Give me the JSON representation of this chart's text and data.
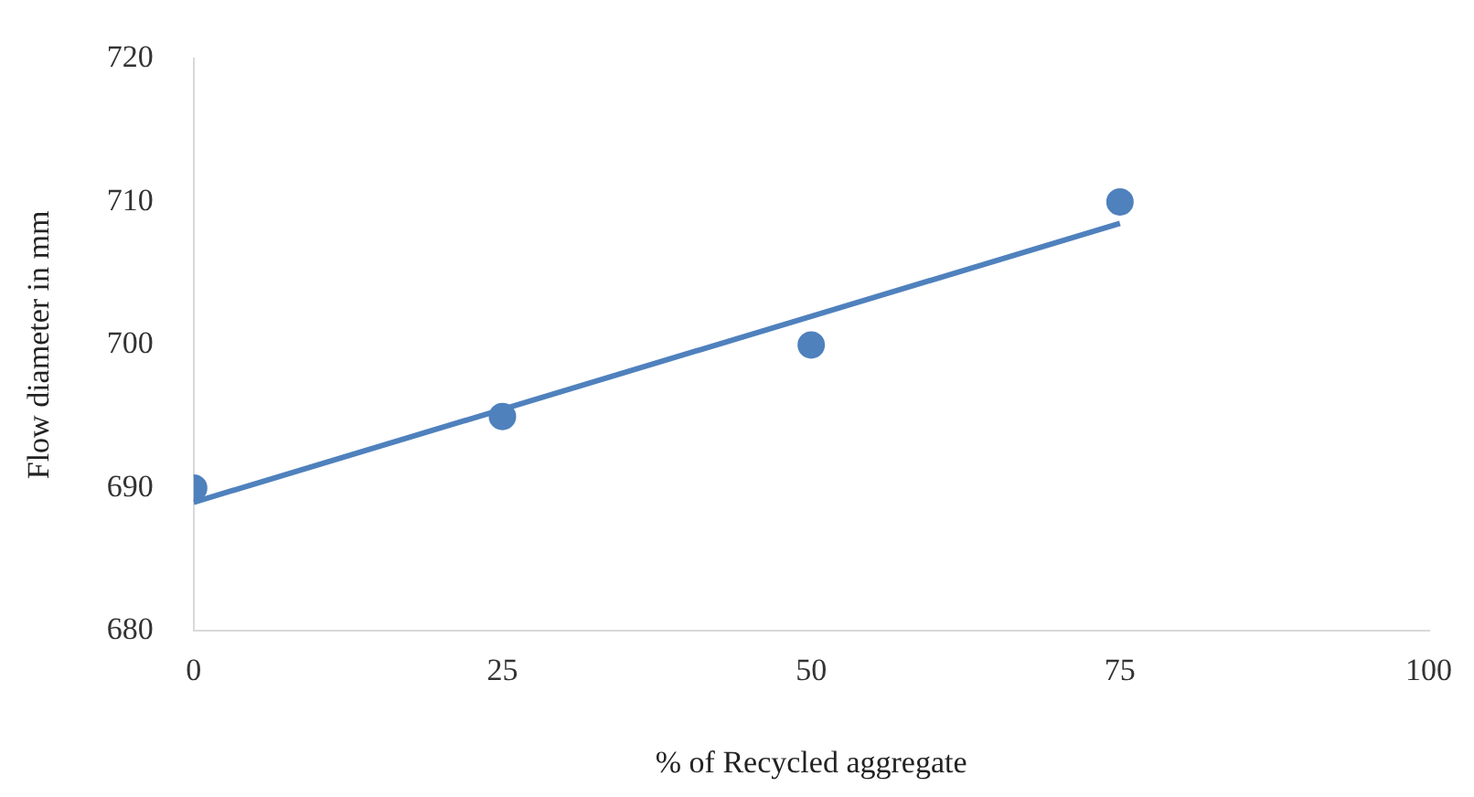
{
  "chart_data": {
    "type": "scatter",
    "xlabel": "% of Recycled aggregate",
    "ylabel": "Flow diameter in mm",
    "x": [
      0,
      25,
      50,
      75
    ],
    "series": [
      {
        "type": "scatter",
        "color": "#4f81bd",
        "values": [
          690,
          695,
          700,
          710
        ]
      },
      {
        "type": "line",
        "color": "#4f81bd",
        "marker": "none",
        "x": [
          0,
          75
        ],
        "values": [
          689,
          708.5
        ]
      }
    ],
    "xlim": [
      0,
      100
    ],
    "xticks": [
      0,
      25,
      50,
      75,
      100
    ],
    "ylim": [
      680,
      720
    ],
    "yticks": [
      680,
      690,
      700,
      710,
      720
    ],
    "grid": false,
    "legend": false,
    "marker": "circle",
    "line_style": "solid"
  }
}
